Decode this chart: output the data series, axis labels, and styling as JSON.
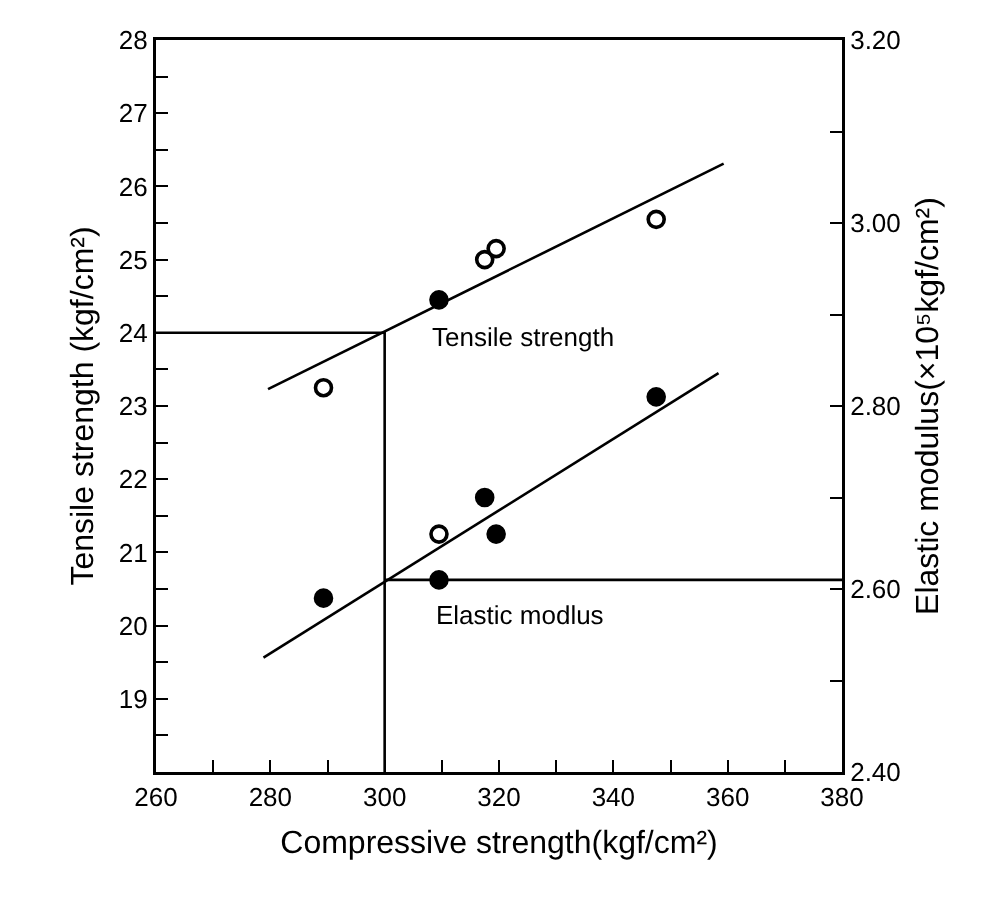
{
  "chart_data": {
    "type": "scatter",
    "xlabel": "Compressive strength(kgf/cm²)",
    "ylabel": "Tensile strength (kgf/cm²)",
    "y2label": "Elastic modulus(×10⁵kgf/cm²)",
    "xlim": [
      260,
      380
    ],
    "xticks": [
      260,
      {
        "value": 270,
        "label": null
      },
      280,
      {
        "value": 290,
        "label": null
      },
      300,
      {
        "value": 310,
        "label": null
      },
      320,
      {
        "value": 330,
        "label": null
      },
      340,
      {
        "value": 350,
        "label": null
      },
      360,
      {
        "value": 370,
        "label": null
      },
      380
    ],
    "ylim": [
      18,
      28
    ],
    "yticks": [
      {
        "value": 18,
        "label": null
      },
      {
        "value": 18.5,
        "label": null
      },
      19,
      {
        "value": 19.5,
        "label": null
      },
      20,
      {
        "value": 20.5,
        "label": null
      },
      21,
      {
        "value": 21.5,
        "label": null
      },
      22,
      {
        "value": 22.5,
        "label": null
      },
      23,
      {
        "value": 23.5,
        "label": null
      },
      24,
      {
        "value": 24.5,
        "label": null
      },
      25,
      {
        "value": 25.5,
        "label": null
      },
      26,
      {
        "value": 26.5,
        "label": null
      },
      27,
      {
        "value": 27.5,
        "label": null
      },
      28
    ],
    "y2lim": [
      2.4,
      3.2
    ],
    "y2ticks": [
      {
        "value": 2.4,
        "label": "2.40"
      },
      {
        "value": 2.5,
        "label": null
      },
      {
        "value": 2.6,
        "label": "2.60"
      },
      {
        "value": 2.7,
        "label": null
      },
      {
        "value": 2.8,
        "label": "2.80"
      },
      {
        "value": 2.9,
        "label": null
      },
      {
        "value": 3.0,
        "label": "3.00"
      },
      {
        "value": 3.1,
        "label": null
      },
      {
        "value": 3.2,
        "label": "3.20"
      }
    ],
    "grid": false,
    "series": [
      {
        "type": "line",
        "name": "Tensile strength",
        "x": [
          279.6,
          359.3
        ],
        "values": [
          23.23,
          26.31
        ],
        "color": "#000000",
        "marker": "none",
        "line_style": "solid"
      },
      {
        "type": "line",
        "name": "Elastic modlus",
        "axis": "y2",
        "x": [
          278.8,
          358.4
        ],
        "values": [
          2.525,
          2.836
        ],
        "color": "#000000",
        "marker": "none",
        "line_style": "solid"
      },
      {
        "type": "line",
        "x": [
          260,
          300,
          300
        ],
        "values": [
          24,
          24,
          18
        ],
        "color": "#000000",
        "marker": "none",
        "line_style": "solid"
      },
      {
        "type": "line",
        "axis": "y2",
        "x": [
          300,
          380
        ],
        "values": [
          2.61,
          2.61
        ],
        "color": "#000000",
        "marker": "none",
        "line_style": "solid"
      },
      {
        "x": [
          289.3,
          317.5,
          319.5,
          347.5
        ],
        "values": [
          23.25,
          25.0,
          25.15,
          25.55
        ],
        "color": "#ffffff",
        "marker": "circle"
      },
      {
        "x": [
          309.5
        ],
        "values": [
          24.45
        ],
        "color": "#000000",
        "marker": "circle"
      },
      {
        "axis": "y2",
        "x": [
          289.3,
          309.5,
          317.5,
          319.5,
          347.5
        ],
        "values": [
          2.59,
          2.61,
          2.7,
          2.66,
          2.81
        ],
        "color": "#000000",
        "marker": "circle"
      },
      {
        "axis": "y2",
        "x": [
          309.5
        ],
        "values": [
          2.66
        ],
        "color": "#ffffff",
        "marker": "circle"
      }
    ]
  }
}
